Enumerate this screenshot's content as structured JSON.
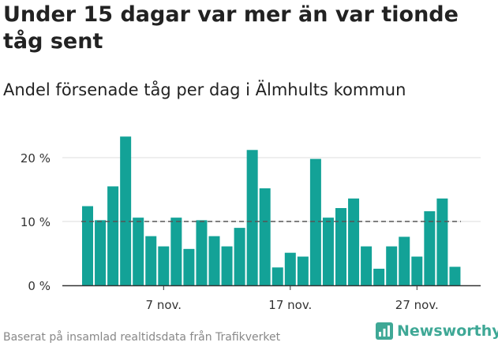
{
  "title": "Under 15 dagar var mer än var tionde tåg sent",
  "subtitle": "Andel försenade tåg per dag i Älmhults kommun",
  "footer": "Baserat på insamlad realtidsdata från Trafikverket",
  "logo_text": "Newsworthy",
  "colors": {
    "bar": "#13a297",
    "reference_line": "#555555",
    "grid": "#dddddd",
    "axis": "#333333",
    "logo": "#3fa896"
  },
  "chart_data": {
    "type": "bar",
    "x_unit": "day of month (November)",
    "x": [
      1,
      2,
      3,
      4,
      5,
      6,
      7,
      8,
      9,
      10,
      11,
      12,
      13,
      14,
      15,
      16,
      17,
      18,
      19,
      20,
      21,
      22,
      23,
      24,
      25,
      26,
      27,
      28,
      29,
      30
    ],
    "values": [
      12.4,
      10.2,
      15.5,
      23.3,
      10.6,
      7.7,
      6.1,
      10.6,
      5.7,
      10.2,
      7.7,
      6.1,
      9.0,
      21.2,
      15.2,
      2.8,
      5.1,
      4.5,
      19.8,
      10.6,
      12.1,
      13.6,
      6.1,
      2.6,
      6.1,
      7.6,
      4.5,
      11.6,
      13.6,
      2.9
    ],
    "y_unit": "%",
    "ylim": [
      0,
      25
    ],
    "y_ticks": [
      0,
      10,
      20
    ],
    "y_tick_labels": [
      "0 %",
      "10 %",
      "20 %"
    ],
    "x_ticks": [
      7,
      17,
      27
    ],
    "x_tick_labels": [
      "7 nov.",
      "17 nov.",
      "27 nov."
    ],
    "reference_line": 10,
    "grid": true,
    "legend": "none"
  }
}
